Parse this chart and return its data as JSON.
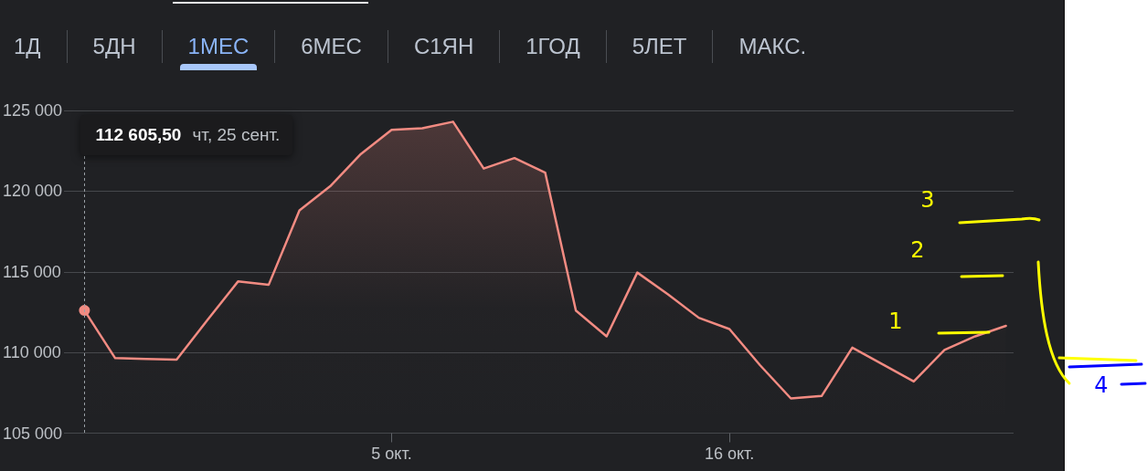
{
  "chart_data": {
    "type": "area",
    "x": [
      "--09-25",
      "--09-26",
      "--09-27",
      "--09-28",
      "--09-29",
      "--09-30",
      "--10-01",
      "--10-02",
      "--10-03",
      "--10-04",
      "--10-05",
      "--10-06",
      "--10-07",
      "--10-08",
      "--10-09",
      "--10-10",
      "--10-11",
      "--10-12",
      "--10-13",
      "--10-14",
      "--10-15",
      "--10-16",
      "--10-17",
      "--10-18",
      "--10-19",
      "--10-20",
      "--10-21",
      "--10-22",
      "--10-23",
      "--10-24",
      "--10-25"
    ],
    "series": [
      {
        "color": "#f28b82",
        "values": [
          112605.5,
          109650,
          109600,
          109550,
          112000,
          114400,
          114200,
          118800,
          120300,
          122300,
          123800,
          123900,
          124300,
          121400,
          122050,
          121150,
          112600,
          111000,
          114950,
          113600,
          112150,
          111450,
          109200,
          107150,
          107300,
          110300,
          109250,
          108200,
          110150,
          111000,
          111650
        ]
      }
    ],
    "xlim": [
      "--09-24T08:00",
      "--10-25T06:00"
    ],
    "xticks": [
      {
        "value": "--10-05",
        "label": "5 окт."
      },
      {
        "value": "--10-16",
        "label": "16 окт."
      }
    ],
    "ylim": [
      105000,
      125000
    ],
    "yticks": [
      {
        "value": 105000,
        "label": "105 000"
      },
      {
        "value": 110000,
        "label": "110 000"
      },
      {
        "value": 115000,
        "label": "115 000"
      },
      {
        "value": 120000,
        "label": "120 000"
      },
      {
        "value": 125000,
        "label": "125 000"
      }
    ],
    "grid": "y",
    "marker": "none",
    "annotations": [
      "1Д",
      "5ДН",
      "1МЕС",
      "6МЕС",
      "С1ЯН",
      "1ГОД",
      "5ЛЕТ",
      "МАКС.",
      "112 605,50",
      "чт, 25 сент.",
      "3",
      "2",
      "1",
      "4"
    ],
    "ref_lines": [
      {
        "axis": "x",
        "value": "--09-25",
        "color": "#9aa0a6",
        "line_style": "dotted"
      }
    ]
  }
}
